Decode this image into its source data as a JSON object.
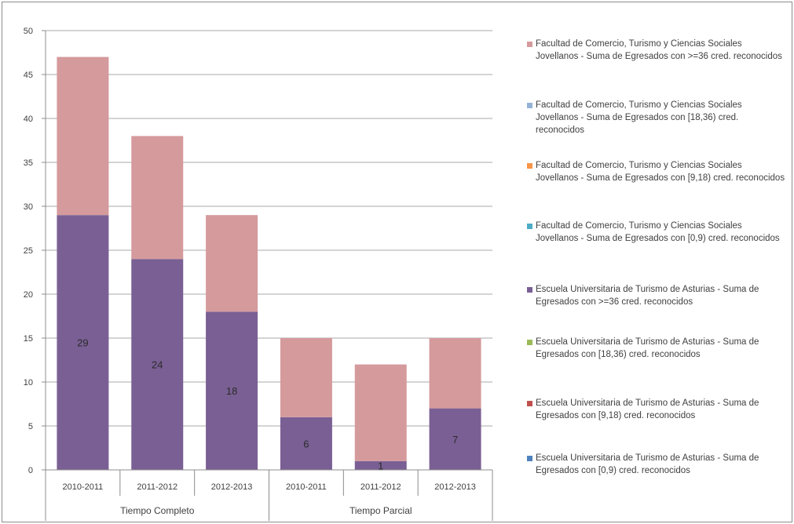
{
  "chart_data": {
    "type": "bar",
    "stacked": true,
    "ylim": [
      0,
      50
    ],
    "yticks": [
      0,
      5,
      10,
      15,
      20,
      25,
      30,
      35,
      40,
      45,
      50
    ],
    "grid": true,
    "legend_position": "right",
    "categories": [
      "2010-2011",
      "2011-2012",
      "2012-2013",
      "2010-2011",
      "2011-2012",
      "2012-2013"
    ],
    "groups": [
      {
        "label": "Tiempo Completo",
        "span": [
          0,
          2
        ]
      },
      {
        "label": "Tiempo Parcial",
        "span": [
          3,
          5
        ]
      }
    ],
    "series": [
      {
        "name": "Escuela Universitaria de Turismo de Asturias - Suma de Egresados con >=36 cred. reconocidos",
        "color": "#7a5f94",
        "values": [
          29,
          24,
          18,
          6,
          1,
          7
        ],
        "data_labels": [
          "29",
          "24",
          "18",
          "6",
          "1",
          "7"
        ]
      },
      {
        "name": "Facultad de Comercio, Turismo y Ciencias Sociales Jovellanos - Suma de Egresados con >=36 cred. reconocidos",
        "color": "#d59a9c",
        "values": [
          18,
          14,
          11,
          9,
          11,
          8
        ]
      }
    ],
    "legend": [
      {
        "text": "Facultad de Comercio, Turismo y Ciencias Sociales Jovellanos - Suma de Egresados con >=36 cred. reconocidos",
        "color": "#d59a9c"
      },
      {
        "text": "Facultad de Comercio, Turismo y Ciencias Sociales Jovellanos - Suma de Egresados con [18,36) cred. reconocidos",
        "color": "#95b3d7"
      },
      {
        "text": "Facultad de Comercio, Turismo y Ciencias Sociales Jovellanos - Suma de Egresados con [9,18) cred. reconocidos",
        "color": "#f79646"
      },
      {
        "text": "Facultad de Comercio, Turismo y Ciencias Sociales Jovellanos - Suma de Egresados con [0,9) cred. reconocidos",
        "color": "#4bacc6"
      },
      {
        "text": "Escuela Universitaria de Turismo de Asturias - Suma de Egresados con >=36 cred. reconocidos",
        "color": "#7a5f94"
      },
      {
        "text": "Escuela Universitaria de Turismo de Asturias - Suma de Egresados con [18,36) cred. reconocidos",
        "color": "#9bbb59"
      },
      {
        "text": "Escuela Universitaria de Turismo de Asturias - Suma de Egresados con [9,18) cred. reconocidos",
        "color": "#c0504d"
      },
      {
        "text": "Escuela Universitaria de Turismo de Asturias - Suma de Egresados con [0,9) cred. reconocidos",
        "color": "#4f81bd"
      }
    ]
  }
}
